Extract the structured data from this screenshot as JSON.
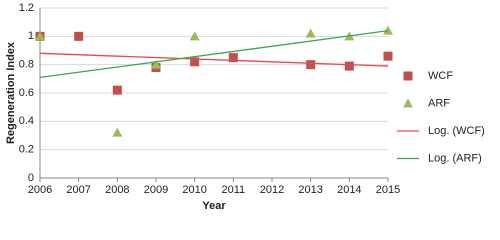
{
  "chart_data": {
    "type": "scatter",
    "xlabel": "Year",
    "ylabel": "Regeneration Index",
    "xlim": [
      2006,
      2015
    ],
    "xticks": [
      2006,
      2007,
      2008,
      2009,
      2010,
      2011,
      2012,
      2013,
      2014,
      2015
    ],
    "ylim": [
      0,
      1.2
    ],
    "yticks": [
      0,
      0.2,
      0.4,
      0.6,
      0.8,
      1,
      1.2
    ],
    "grid": true,
    "legend": "right",
    "series": [
      {
        "name": "WCF",
        "kind": "scatter",
        "marker": "square",
        "color": "#c0504d",
        "x": [
          2006,
          2007,
          2008,
          2009,
          2010,
          2011,
          2013,
          2014,
          2015
        ],
        "values": [
          1.0,
          1.0,
          0.62,
          0.78,
          0.82,
          0.85,
          0.8,
          0.79,
          0.86
        ]
      },
      {
        "name": "ARF",
        "kind": "scatter",
        "marker": "triangle",
        "color": "#9bbb59",
        "x": [
          2006,
          2008,
          2009,
          2010,
          2013,
          2014,
          2015
        ],
        "values": [
          1.0,
          0.32,
          0.8,
          1.0,
          1.02,
          1.0,
          1.04
        ]
      },
      {
        "name": "Log. (WCF)",
        "kind": "line",
        "color": "#e84a4a",
        "x": [
          2006,
          2015
        ],
        "values": [
          0.88,
          0.79
        ]
      },
      {
        "name": "Log. (ARF)",
        "kind": "line",
        "color": "#3aa655",
        "x": [
          2006,
          2015
        ],
        "values": [
          0.71,
          1.04
        ]
      }
    ]
  }
}
